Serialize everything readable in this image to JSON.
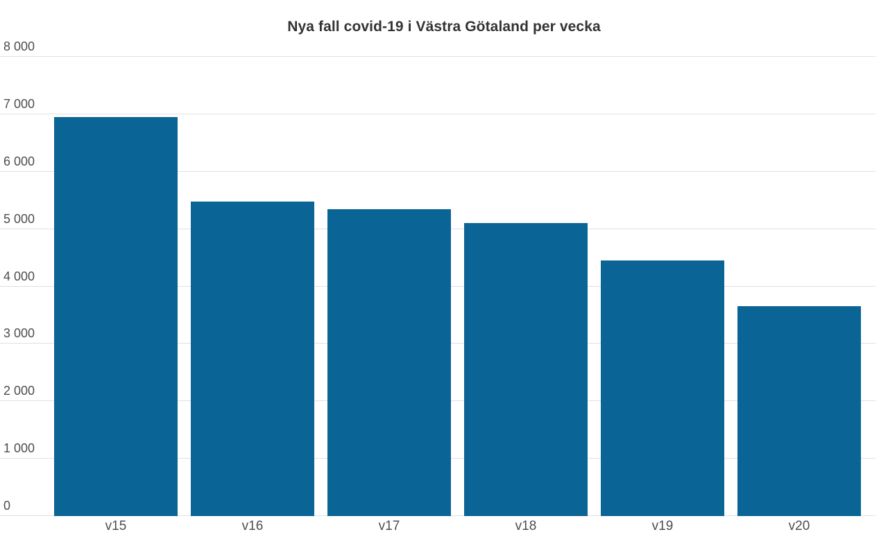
{
  "chart_data": {
    "type": "bar",
    "title": "Nya fall covid-19 i Västra Götaland per vecka",
    "categories": [
      "v15",
      "v16",
      "v17",
      "v18",
      "v19",
      "v20"
    ],
    "values": [
      6940,
      5470,
      5330,
      5090,
      4440,
      3650
    ],
    "xlabel": "",
    "ylabel": "",
    "ylim": [
      0,
      8000
    ],
    "ytick_step": 1000,
    "ytick_labels": [
      "0",
      "1 000",
      "2 000",
      "3 000",
      "4 000",
      "5 000",
      "6 000",
      "7 000",
      "8 000"
    ],
    "grid": true,
    "legend": "none",
    "bar_color": "#0a6496",
    "gridline_color": "#e0e0e0",
    "tick_text_color": "#4d4d4d",
    "title_color": "#333333",
    "background_color": "#ffffff"
  }
}
